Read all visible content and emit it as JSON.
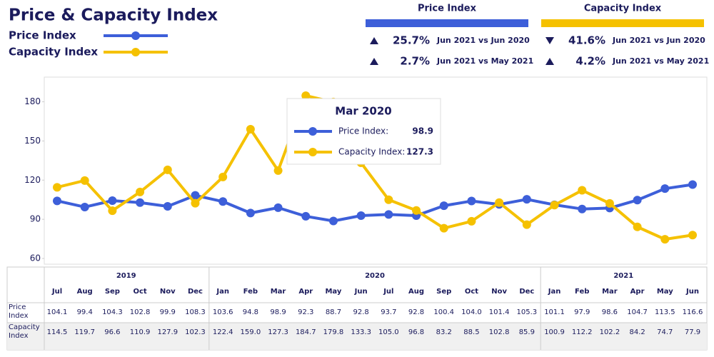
{
  "chart_data": {
    "type": "line",
    "title": "Price & Capacity Index",
    "years": [
      {
        "label": "2019",
        "months": [
          "Jul",
          "Aug",
          "Sep",
          "Oct",
          "Nov",
          "Dec"
        ]
      },
      {
        "label": "2020",
        "months": [
          "Jan",
          "Feb",
          "Mar",
          "Apr",
          "May",
          "Jun",
          "Jul",
          "Aug",
          "Sep",
          "Oct",
          "Nov",
          "Dec"
        ]
      },
      {
        "label": "2021",
        "months": [
          "Jan",
          "Feb",
          "Mar",
          "Apr",
          "May",
          "Jun"
        ]
      }
    ],
    "series": [
      {
        "name": "Price Index",
        "color": "#3d5fd9",
        "values": [
          104.1,
          99.4,
          104.3,
          102.8,
          99.9,
          108.3,
          103.6,
          94.8,
          98.9,
          92.3,
          88.7,
          92.8,
          93.7,
          92.8,
          100.4,
          104.0,
          101.4,
          105.3,
          101.1,
          97.9,
          98.6,
          104.7,
          113.5,
          116.6
        ],
        "value_labels": [
          "104.1",
          "99.4",
          "104.3",
          "102.8",
          "99.9",
          "108.3",
          "103.6",
          "94.8",
          "98.9",
          "92.3",
          "88.7",
          "92.8",
          "93.7",
          "92.8",
          "100.4",
          "104.0",
          "101.4",
          "105.3",
          "101.1",
          "97.9",
          "98.6",
          "104.7",
          "113.5",
          "116.6"
        ]
      },
      {
        "name": "Capacity Index",
        "color": "#f5c100",
        "values": [
          114.5,
          119.7,
          96.6,
          110.9,
          127.9,
          102.3,
          122.4,
          159.0,
          127.3,
          184.7,
          179.8,
          133.3,
          105.0,
          96.8,
          83.2,
          88.5,
          102.8,
          85.9,
          100.9,
          112.2,
          102.2,
          84.2,
          74.7,
          77.9
        ],
        "value_labels": [
          "114.5",
          "119.7",
          "96.6",
          "110.9",
          "127.9",
          "102.3",
          "122.4",
          "159.0",
          "127.3",
          "184.7",
          "179.8",
          "133.3",
          "105.0",
          "96.8",
          "83.2",
          "88.5",
          "102.8",
          "85.9",
          "100.9",
          "112.2",
          "102.2",
          "84.2",
          "74.7",
          "77.9"
        ]
      }
    ],
    "ylim": [
      60,
      200
    ],
    "yticks": [
      60,
      90,
      120,
      150,
      180
    ],
    "grid": false,
    "tooltip": {
      "title": "Mar 2020",
      "index": 8,
      "labels": [
        "Price Index:",
        "Capacity Index:"
      ]
    },
    "summary": [
      {
        "rows": [
          {
            "change": "25.7%",
            "compare": "Jun 2021 vs Jun 2020",
            "direction": "up"
          },
          {
            "change": "2.7%",
            "compare": "Jun 2021 vs May 2021",
            "direction": "up"
          }
        ]
      },
      {
        "rows": [
          {
            "change": "41.6%",
            "compare": "Jun 2021 vs Jun 2020",
            "direction": "down"
          },
          {
            "change": "4.2%",
            "compare": "Jun 2021 vs May 2021",
            "direction": "up"
          }
        ]
      }
    ]
  }
}
